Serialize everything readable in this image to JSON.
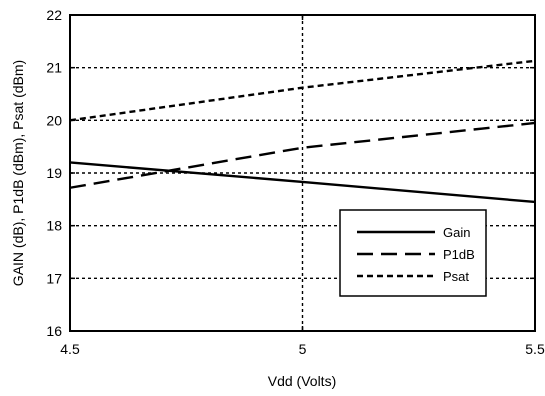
{
  "chart_data": {
    "type": "line",
    "xlabel": "Vdd (Volts)",
    "ylabel": "GAIN (dB), P1dB (dBm), Psat (dBm)",
    "xlim": [
      4.5,
      5.5
    ],
    "ylim": [
      16,
      22
    ],
    "x_ticks": [
      "4.5",
      "5",
      "5.5"
    ],
    "y_ticks": [
      "16",
      "17",
      "18",
      "19",
      "20",
      "21",
      "22"
    ],
    "grid": true,
    "legend_position": "lower-right",
    "series": [
      {
        "name": "Gain",
        "style": "solid",
        "x": [
          4.5,
          5.0,
          5.5
        ],
        "y": [
          19.2,
          18.83,
          18.45
        ]
      },
      {
        "name": "P1dB",
        "style": "long-dash",
        "x": [
          4.5,
          5.0,
          5.5
        ],
        "y": [
          18.72,
          19.48,
          19.95
        ]
      },
      {
        "name": "Psat",
        "style": "short-dash",
        "x": [
          4.5,
          5.0,
          5.5
        ],
        "y": [
          20.0,
          20.62,
          21.13
        ]
      }
    ]
  }
}
